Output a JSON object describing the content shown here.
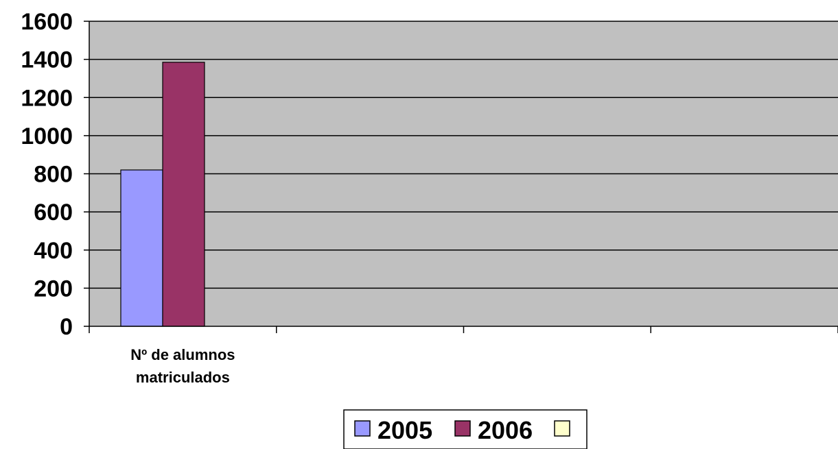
{
  "chart_data": {
    "type": "bar",
    "categories": [
      "Nº de alumnos matriculados"
    ],
    "category_lines": [
      [
        "Nº de alumnos",
        "matriculados"
      ]
    ],
    "series": [
      {
        "name": "2005",
        "values": [
          820
        ],
        "color": "#9999ff"
      },
      {
        "name": "2006",
        "values": [
          1385
        ],
        "color": "#993366"
      },
      {
        "name": "",
        "values": [
          null
        ],
        "color": "#ffffcc"
      }
    ],
    "ylim": [
      0,
      1600
    ],
    "yticks": [
      "0",
      "200",
      "400",
      "600",
      "800",
      "1000",
      "1200",
      "1400",
      "1600"
    ],
    "x_slots": 4,
    "grid": true,
    "plot_background": "#c0c0c0",
    "legend_position": "bottom"
  }
}
